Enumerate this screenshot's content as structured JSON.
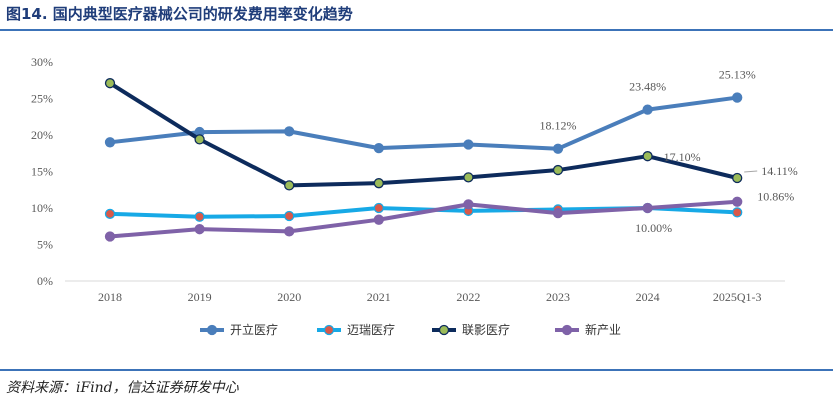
{
  "figure": {
    "title": "图14. 国内典型医疗器械公司的研发费用率变化趋势",
    "source": "资料来源：iFind，信达证券研发中心"
  },
  "chart_data": {
    "type": "line",
    "categories": [
      "2018",
      "2019",
      "2020",
      "2021",
      "2022",
      "2023",
      "2024",
      "2025Q1-3"
    ],
    "ylim": [
      0,
      30
    ],
    "yticks": [
      "0%",
      "5%",
      "10%",
      "15%",
      "20%",
      "25%",
      "30%"
    ],
    "y_unit": "%",
    "grid": false,
    "legend_position": "bottom",
    "series": [
      {
        "name": "开立医疗",
        "color": "#4a7ebb",
        "marker_fill": "#4a7ebb",
        "values": [
          19.0,
          20.4,
          20.5,
          18.2,
          18.7,
          18.12,
          23.48,
          25.13
        ]
      },
      {
        "name": "迈瑞医疗",
        "color": "#17a9e6",
        "marker_fill": "#d8594a",
        "values": [
          9.2,
          8.8,
          8.9,
          10.0,
          9.6,
          9.8,
          10.0,
          9.4
        ]
      },
      {
        "name": "联影医疗",
        "color": "#0d2b5c",
        "marker_fill": "#9bbb59",
        "values": [
          27.1,
          19.4,
          13.1,
          13.4,
          14.2,
          15.2,
          17.1,
          14.11
        ]
      },
      {
        "name": "新产业",
        "color": "#7f62a8",
        "marker_fill": "#7f62a8",
        "values": [
          6.1,
          7.1,
          6.8,
          8.4,
          10.5,
          9.3,
          10.0,
          10.86
        ]
      }
    ],
    "data_labels": [
      {
        "series": 0,
        "index": 5,
        "text": "18.12%"
      },
      {
        "series": 0,
        "index": 6,
        "text": "23.48%"
      },
      {
        "series": 0,
        "index": 7,
        "text": "25.13%"
      },
      {
        "series": 2,
        "index": 6,
        "text": "17.10%"
      },
      {
        "series": 2,
        "index": 7,
        "text": "14.11%"
      },
      {
        "series": 3,
        "index": 6,
        "text": "10.00%"
      },
      {
        "series": 3,
        "index": 7,
        "text": "10.86%"
      }
    ]
  }
}
